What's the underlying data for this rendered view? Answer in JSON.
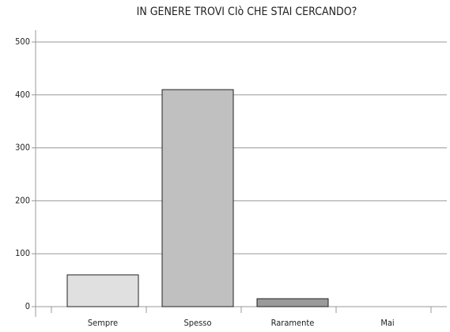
{
  "chart_data": {
    "type": "bar",
    "title": "IN GENERE TROVI CIò CHE STAI CERCANDO?",
    "categories": [
      "Sempre",
      "Spesso",
      "Raramente",
      "Mai"
    ],
    "values": [
      60,
      410,
      15,
      0
    ],
    "colors": [
      "#e0e0e0",
      "#c0c0c0",
      "#9a9a9a",
      "#7a7a7a"
    ],
    "ylim": [
      0,
      500
    ],
    "yticks": [
      0,
      100,
      200,
      300,
      400,
      500
    ],
    "grid": true
  }
}
